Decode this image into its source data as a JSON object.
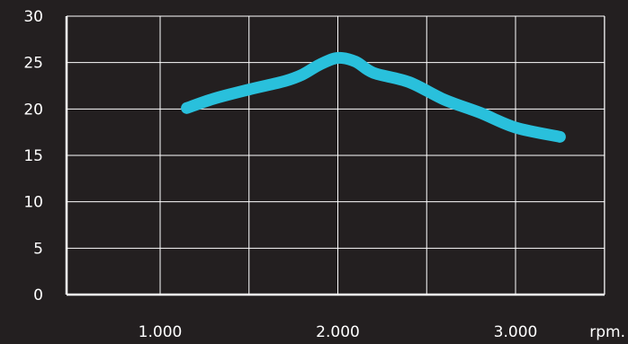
{
  "chart_data": {
    "type": "line",
    "title": "",
    "xlabel": "rpm.",
    "ylabel": "",
    "x_tick_labels": [
      "1.000",
      "2.000",
      "3.000"
    ],
    "x_ticks": [
      1000,
      2000,
      3000
    ],
    "y_tick_labels": [
      "0",
      "5",
      "10",
      "15",
      "20",
      "25",
      "30"
    ],
    "y_ticks": [
      0,
      5,
      10,
      15,
      20,
      25,
      30
    ],
    "xlim": [
      0,
      3500
    ],
    "ylim": [
      0,
      30
    ],
    "grid": true,
    "colors": {
      "background": "#231f20",
      "grid": "#ffffff",
      "line": "#29c0dc",
      "text": "#ffffff"
    },
    "series": [
      {
        "x": [
          1150,
          1300,
          1500,
          1700,
          1800,
          1900,
          2000,
          2100,
          2200,
          2400,
          2600,
          2800,
          3000,
          3250
        ],
        "values": [
          20.1,
          21.1,
          22.1,
          23.0,
          23.7,
          24.8,
          25.5,
          25.1,
          23.9,
          22.9,
          21.0,
          19.6,
          18.0,
          17.0
        ]
      }
    ]
  }
}
